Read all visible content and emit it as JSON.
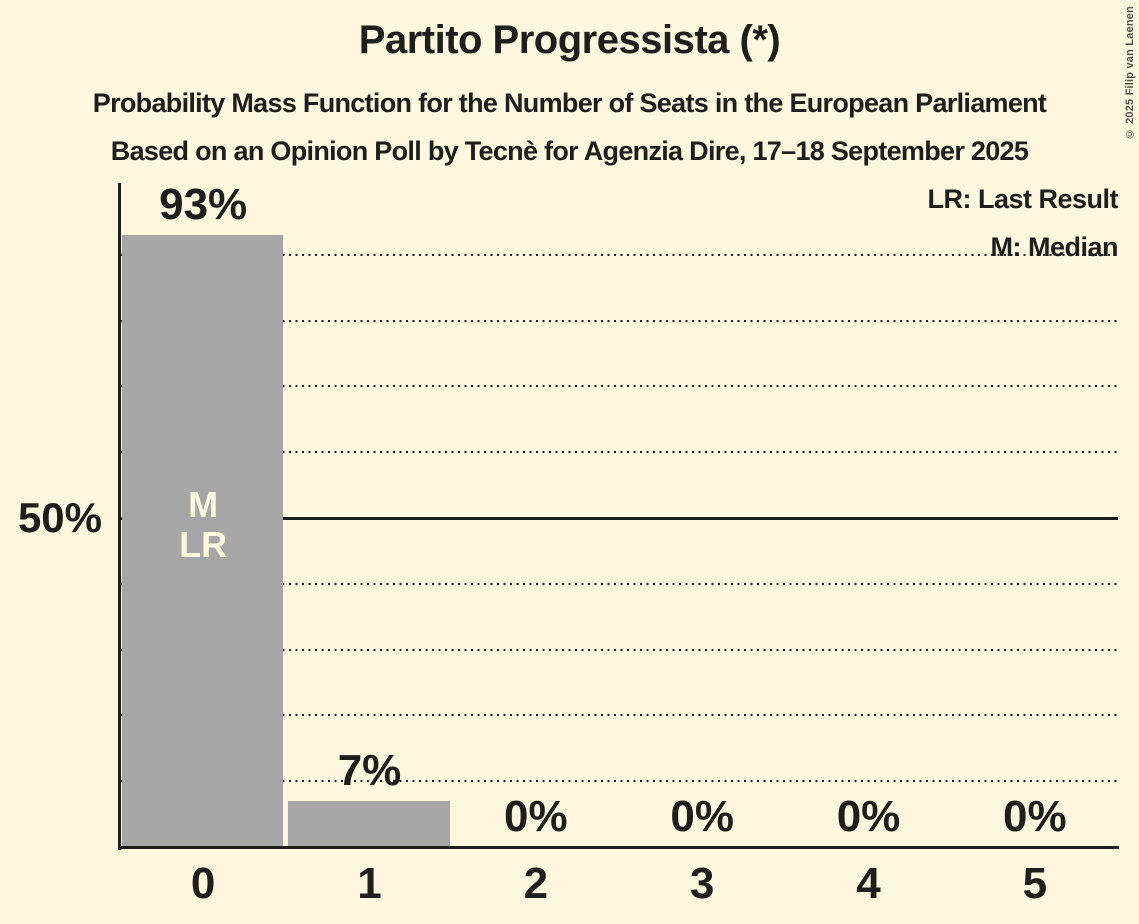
{
  "title": "Partito Progressista (*)",
  "subtitles": [
    "Probability Mass Function for the Number of Seats in the European Parliament",
    "Based on an Opinion Poll by Tecnè for Agenzia Dire, 17–18 September 2025"
  ],
  "legend": {
    "last_result": "LR: Last Result",
    "median": "M: Median"
  },
  "y_axis_label": "50%",
  "copyright": "© 2025 Filip van Laenen",
  "colors": {
    "background": "#FCF7DF",
    "bar": "#A6A6A6",
    "text": "#1E1E1A"
  },
  "chart_data": {
    "type": "bar",
    "title": "Partito Progressista (*)",
    "categories": [
      "0",
      "1",
      "2",
      "3",
      "4",
      "5"
    ],
    "values": [
      93,
      7,
      0,
      0,
      0,
      0
    ],
    "value_labels": [
      "93%",
      "7%",
      "0%",
      "0%",
      "0%",
      "0%"
    ],
    "xlabel": "",
    "ylabel": "",
    "ylim": [
      0,
      100
    ],
    "y_tick_labels": [
      {
        "pct": 50,
        "label": "50%"
      }
    ],
    "dotted_gridlines_pct": [
      10,
      20,
      30,
      40,
      60,
      70,
      80,
      90
    ],
    "solid_gridline_pct": 50,
    "bar_annotations": [
      {
        "category_index": 0,
        "lines": [
          "M",
          "LR"
        ]
      }
    ],
    "legend_position": "top-right",
    "grid": "dotted-horizontal"
  }
}
